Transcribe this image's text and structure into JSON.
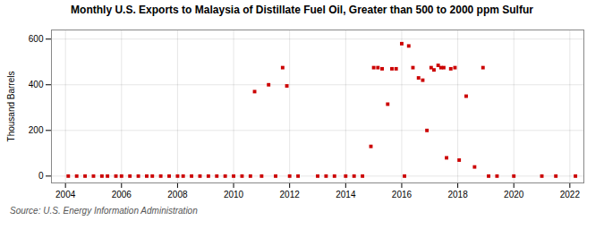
{
  "chart_data": {
    "type": "scatter",
    "title": "Monthly U.S. Exports to Malaysia of Distillate Fuel Oil, Greater than 500 to 2000 ppm Sulfur",
    "ylabel": "Thousand Barrels",
    "source": "Source: U.S. Energy Information Administration",
    "color": "#cc0000",
    "marker": "square",
    "grid": true,
    "xlim": [
      2003.5,
      2022.5
    ],
    "ylim": [
      -30,
      640
    ],
    "xticks": [
      2004,
      2006,
      2008,
      2010,
      2012,
      2014,
      2016,
      2018,
      2020,
      2022
    ],
    "yticks": [
      0,
      200,
      400,
      600
    ],
    "x": [
      2004.1,
      2004.4,
      2004.7,
      2005.0,
      2005.3,
      2005.5,
      2005.8,
      2006.0,
      2006.3,
      2006.6,
      2006.9,
      2007.1,
      2007.4,
      2007.7,
      2008.0,
      2008.2,
      2008.5,
      2008.8,
      2009.1,
      2009.4,
      2009.7,
      2010.0,
      2010.3,
      2010.6,
      2010.75,
      2011.0,
      2011.25,
      2011.5,
      2011.75,
      2011.9,
      2012.0,
      2012.3,
      2013.0,
      2013.3,
      2013.6,
      2014.0,
      2014.3,
      2014.6,
      2014.9,
      2015.0,
      2015.15,
      2015.3,
      2015.5,
      2015.65,
      2015.8,
      2016.0,
      2016.1,
      2016.25,
      2016.4,
      2016.6,
      2016.75,
      2016.9,
      2017.05,
      2017.15,
      2017.3,
      2017.4,
      2017.5,
      2017.6,
      2017.75,
      2017.9,
      2018.05,
      2018.3,
      2018.6,
      2018.9,
      2019.1,
      2019.4,
      2020.0,
      2021.0,
      2021.5,
      2022.2
    ],
    "values": [
      0,
      0,
      0,
      0,
      0,
      0,
      0,
      0,
      0,
      0,
      0,
      0,
      0,
      0,
      0,
      0,
      0,
      0,
      0,
      0,
      0,
      0,
      0,
      0,
      370,
      0,
      400,
      0,
      475,
      395,
      0,
      0,
      0,
      0,
      0,
      0,
      0,
      0,
      130,
      475,
      475,
      470,
      315,
      470,
      470,
      580,
      0,
      570,
      475,
      430,
      420,
      200,
      475,
      465,
      485,
      475,
      475,
      80,
      470,
      475,
      70,
      350,
      40,
      475,
      0,
      0,
      0,
      0,
      0,
      0
    ]
  }
}
